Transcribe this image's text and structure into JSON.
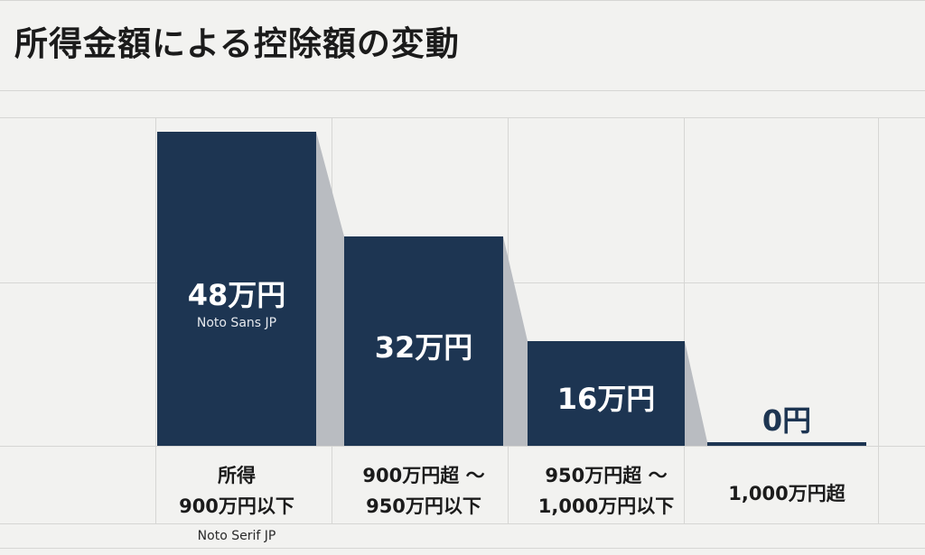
{
  "chart_data": {
    "type": "bar",
    "title": "所得金額による控除額の変動",
    "xlabel": "",
    "ylabel": "",
    "ylim": [
      0,
      48
    ],
    "grid": true,
    "categories": [
      [
        "所得",
        "900万円以下"
      ],
      [
        "900万円超 ～",
        "950万円以下"
      ],
      [
        "950万円超 ～",
        "1,000万円以下"
      ],
      [
        "1,000万円超"
      ]
    ],
    "values": [
      48,
      32,
      16,
      0
    ],
    "value_labels": [
      "48万円",
      "32万円",
      "16万円",
      "0円"
    ],
    "annotations": {
      "bar_note": "Noto Sans JP",
      "axis_note": "Noto Serif JP"
    }
  },
  "colors": {
    "bar": "#1d3552",
    "shadow": "#b9bcc1",
    "grid": "#d6d6d4",
    "background": "#f2f2f0",
    "text": "#1b1b1b"
  }
}
